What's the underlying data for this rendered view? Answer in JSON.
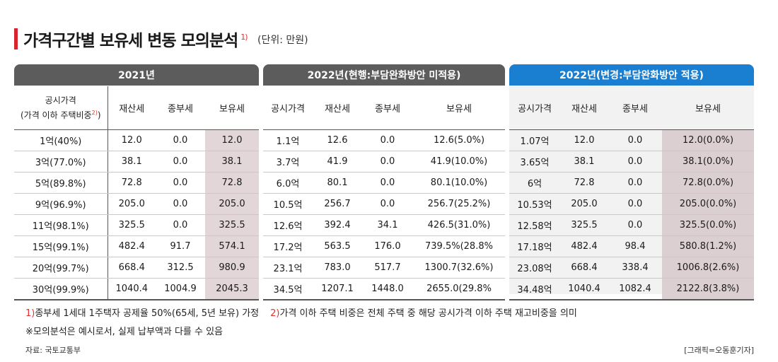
{
  "title": "가격구간별 보유세 변동 모의분석",
  "title_note_marker": "1)",
  "unit": "(단위: 만원)",
  "groups": {
    "g2021": "2021년",
    "g2022a": "2022년(현행:부담완화방안 미적용)",
    "g2022b": "2022년(변경:부담완화방안 적용)"
  },
  "columns": {
    "label_line1": "공시가격",
    "label_line2": "(가격 이하 주택비중",
    "label_marker": "2)",
    "label_close": ")",
    "c2021": [
      "재산세",
      "종부세",
      "보유세"
    ],
    "c2022a": [
      "공시가격",
      "재산세",
      "종부세",
      "보유세"
    ],
    "c2022b": [
      "공시가격",
      "재산세",
      "종부세",
      "보유세"
    ]
  },
  "rows": [
    {
      "label": "1억(40%)",
      "r2021": [
        "12.0",
        "0.0",
        "12.0"
      ],
      "r2022a": [
        "1.1억",
        "12.6",
        "0.0",
        "12.6(5.0%)"
      ],
      "r2022b": [
        "1.07억",
        "12.0",
        "0.0",
        "12.0(0.0%)"
      ]
    },
    {
      "label": "3억(77.0%)",
      "r2021": [
        "38.1",
        "0.0",
        "38.1"
      ],
      "r2022a": [
        "3.7억",
        "41.9",
        "0.0",
        "41.9(10.0%)"
      ],
      "r2022b": [
        "3.65억",
        "38.1",
        "0.0",
        "38.1(0.0%)"
      ]
    },
    {
      "label": "5억(89.8%)",
      "r2021": [
        "72.8",
        "0.0",
        "72.8"
      ],
      "r2022a": [
        "6.0억",
        "80.1",
        "0.0",
        "80.1(10.0%)"
      ],
      "r2022b": [
        "6억",
        "72.8",
        "0.0",
        "72.8(0.0%)"
      ]
    },
    {
      "label": "9억(96.9%)",
      "r2021": [
        "205.0",
        "0.0",
        "205.0"
      ],
      "r2022a": [
        "10.5억",
        "256.7",
        "0.0",
        "256.7(25.2%)"
      ],
      "r2022b": [
        "10.53억",
        "205.0",
        "0.0",
        "205.0(0.0%)"
      ]
    },
    {
      "label": "11억(98.1%)",
      "r2021": [
        "325.5",
        "0.0",
        "325.5"
      ],
      "r2022a": [
        "12.6억",
        "392.4",
        "34.1",
        "426.5(31.0%)"
      ],
      "r2022b": [
        "12.58억",
        "325.5",
        "0.0",
        "325.5(0.0%)"
      ]
    },
    {
      "label": "15억(99.1%)",
      "r2021": [
        "482.4",
        "91.7",
        "574.1"
      ],
      "r2022a": [
        "17.2억",
        "563.5",
        "176.0",
        "739.5%(28.8%"
      ],
      "r2022b": [
        "17.18억",
        "482.4",
        "98.4",
        "580.8(1.2%)"
      ]
    },
    {
      "label": "20억(99.7%)",
      "r2021": [
        "668.4",
        "312.5",
        "980.9"
      ],
      "r2022a": [
        "23.1억",
        "783.0",
        "517.7",
        "1300.7(32.6%)"
      ],
      "r2022b": [
        "23.08억",
        "668.4",
        "338.4",
        "1006.8(2.6%)"
      ]
    },
    {
      "label": "30억(99.9%)",
      "r2021": [
        "1040.4",
        "1004.9",
        "2045.3"
      ],
      "r2022a": [
        "34.5억",
        "1207.1",
        "1448.0",
        "2655.0(29.8%"
      ],
      "r2022b": [
        "34.48억",
        "1040.4",
        "1082.4",
        "2122.8(3.8%)"
      ]
    }
  ],
  "footnotes": {
    "n1_marker": "1)",
    "n1_text": "종부세 1세대 1주택자 공제율 50%(65세, 5년 보유) 가정",
    "n2_marker": "2)",
    "n2_text": "가격 이하 주택 비중은 전체 주택 중 해당 공시가격 이하 주택 재고비중을 의미",
    "note": "※모의분석은 예시로서, 실제 납부액과 다를 수 있음"
  },
  "source": "자료: 국토교통부",
  "credit": "[그래픽=오동훈기자]",
  "colors": {
    "accent_red": "#d9232e",
    "header_gray": "#5c5c5c",
    "header_blue": "#1a7fd1",
    "highlight": "#e3d6d9"
  }
}
